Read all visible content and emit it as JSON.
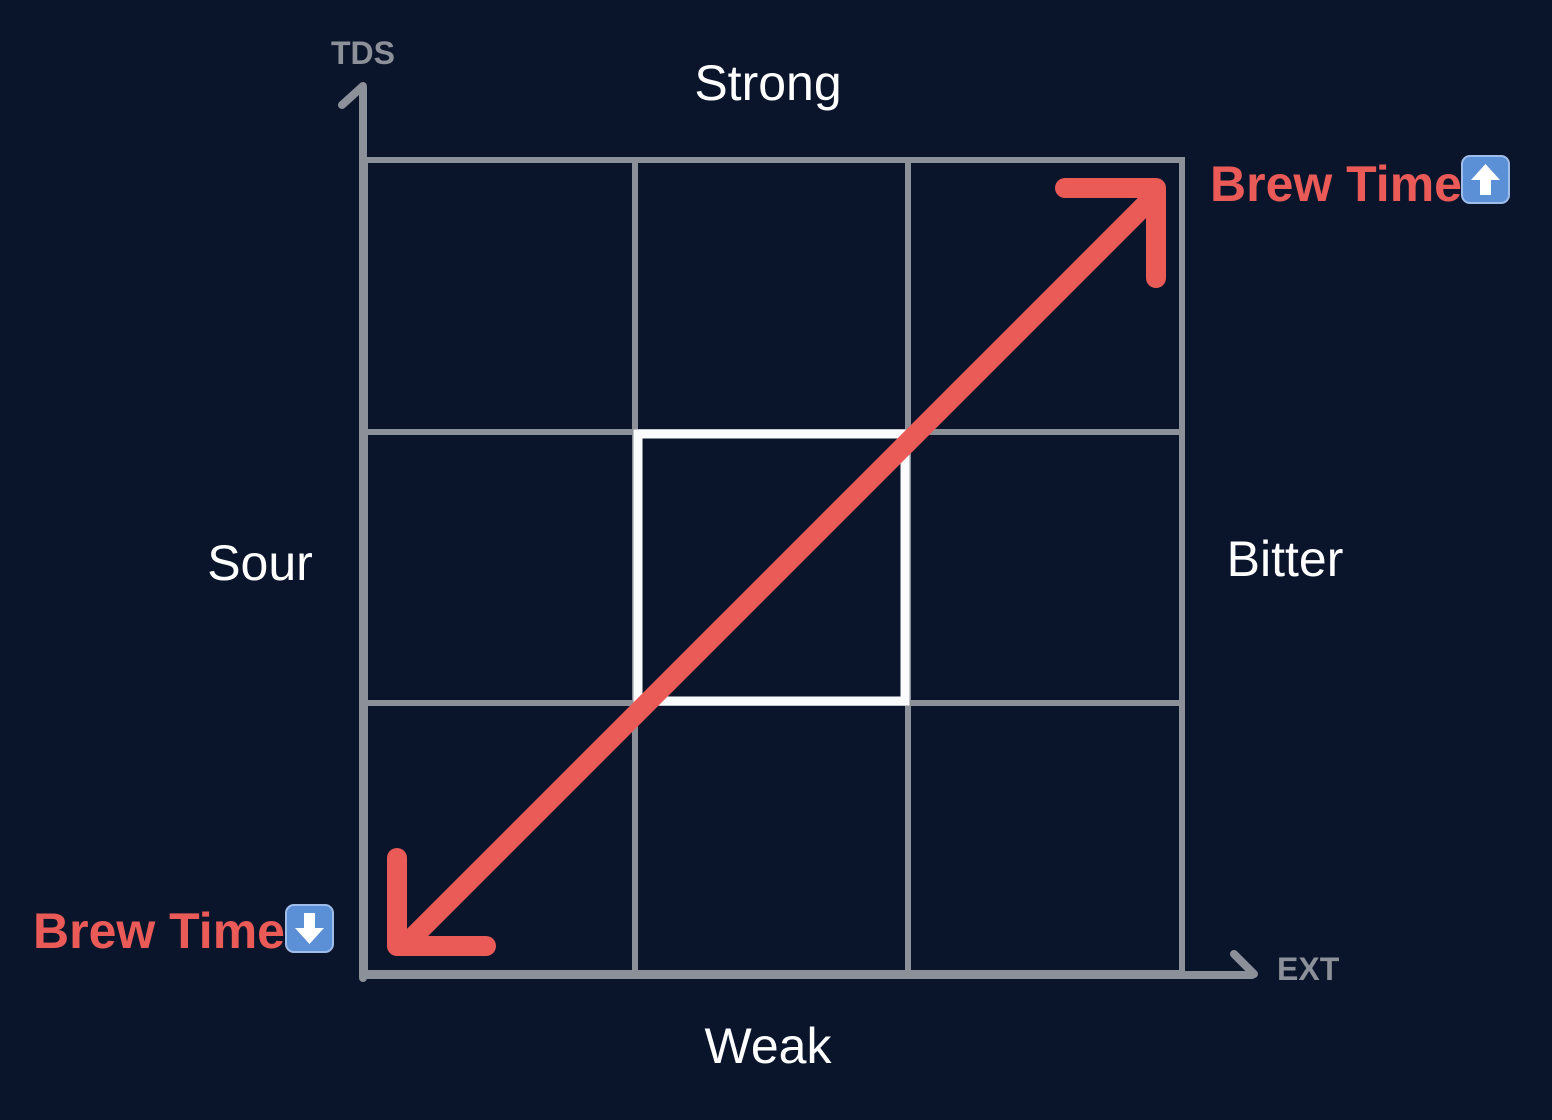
{
  "axes": {
    "y_label": "TDS",
    "x_label": "EXT"
  },
  "regions": {
    "top": "Strong",
    "bottom": "Weak",
    "left": "Sour",
    "right": "Bitter"
  },
  "annotations": {
    "up": {
      "text": "Brew Time",
      "icon": "arrow-up-emoji-icon"
    },
    "down": {
      "text": "Brew Time",
      "icon": "arrow-down-emoji-icon"
    }
  },
  "grid": {
    "rows": 3,
    "cols": 3,
    "highlight_cell": "center"
  },
  "colors": {
    "background": "#0a142b",
    "grid": "#8c9098",
    "highlight": "#ffffff",
    "accent": "#ea5b58",
    "icon_bg": "#5b8fd6"
  }
}
